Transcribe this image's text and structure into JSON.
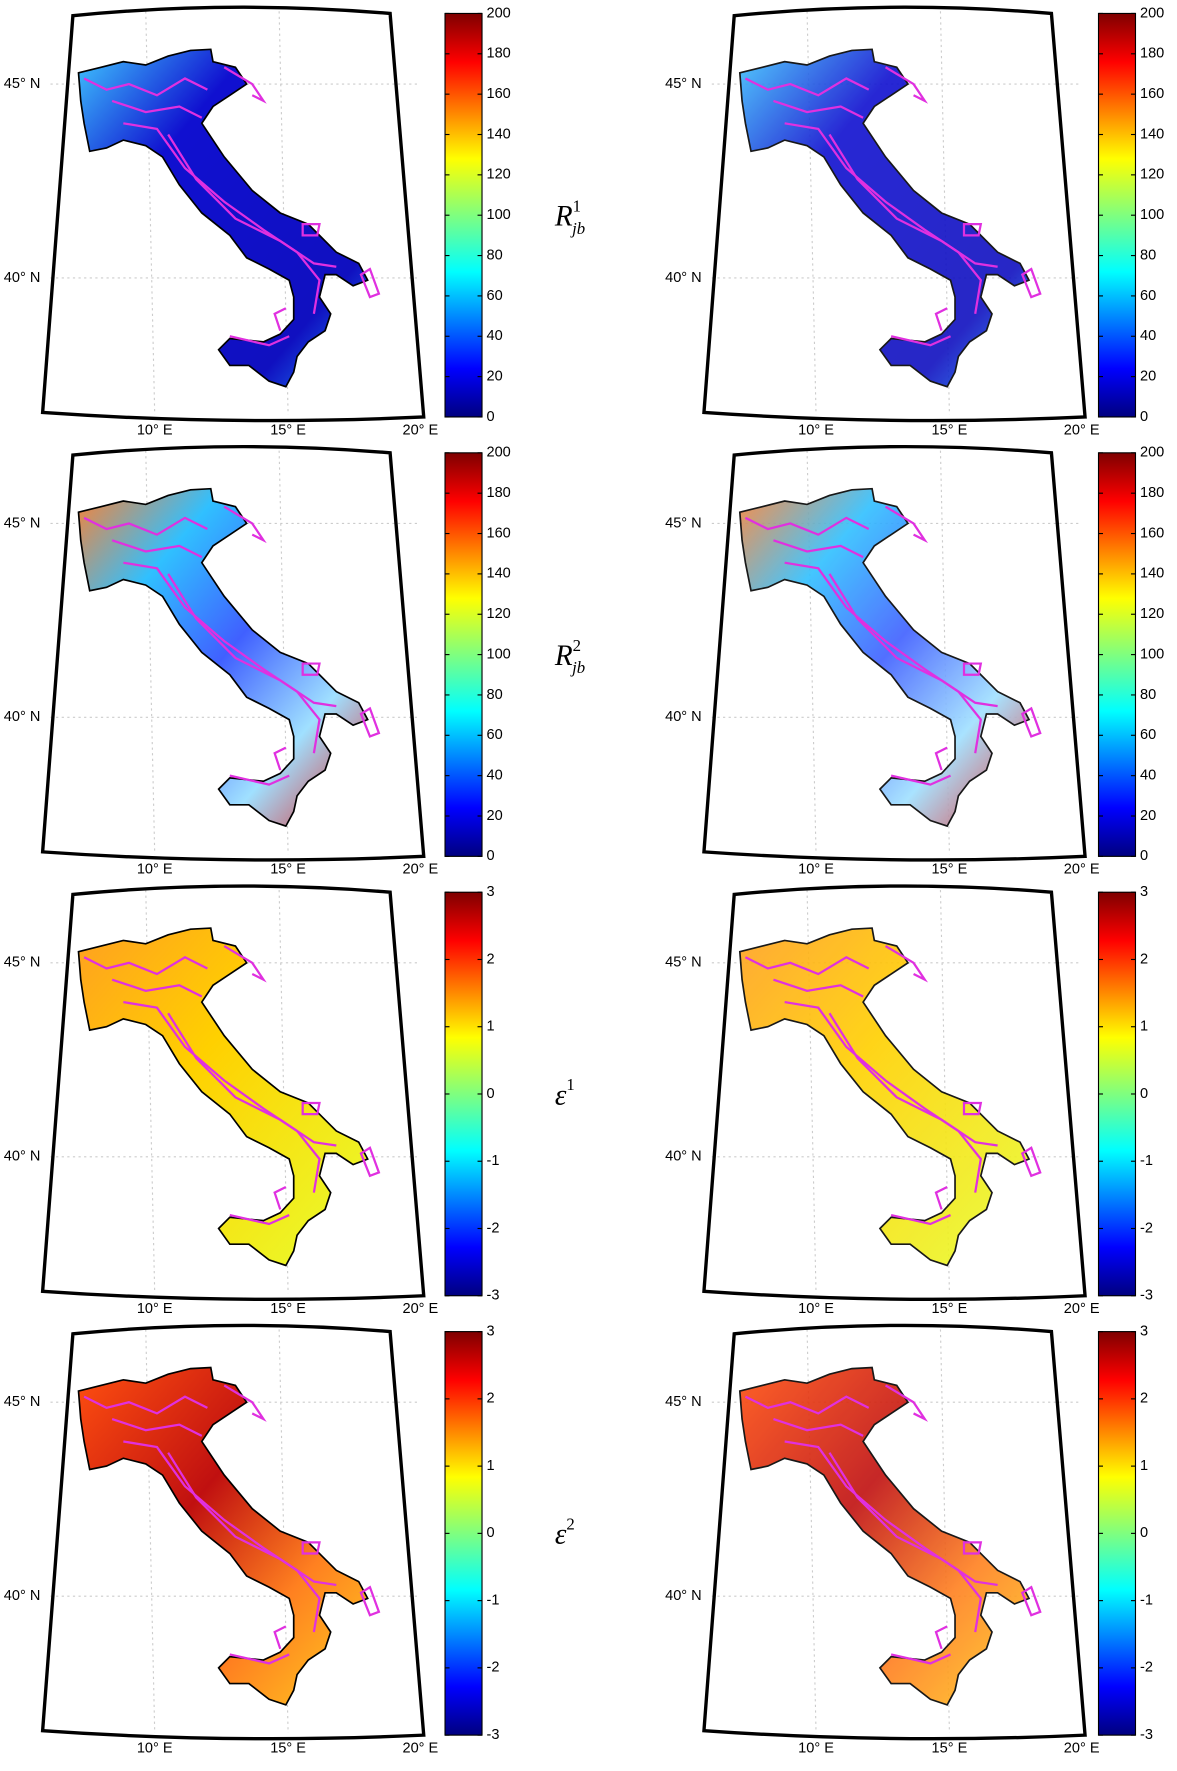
{
  "rows": [
    {
      "label": {
        "base": "R",
        "sup": "1",
        "sub": "jb"
      },
      "colorbar": {
        "lim": [
          0,
          200
        ],
        "ticks": [
          0,
          20,
          40,
          60,
          80,
          100,
          120,
          140,
          160,
          180,
          200
        ]
      }
    },
    {
      "label": {
        "base": "R",
        "sup": "2",
        "sub": "jb"
      },
      "colorbar": {
        "lim": [
          0,
          200
        ],
        "ticks": [
          0,
          20,
          40,
          60,
          80,
          100,
          120,
          140,
          160,
          180,
          200
        ]
      }
    },
    {
      "label": {
        "base": "ε",
        "sup": "1"
      },
      "colorbar": {
        "lim": [
          -3,
          3
        ],
        "ticks": [
          -3,
          -2,
          -1,
          0,
          1,
          2,
          3
        ]
      }
    },
    {
      "label": {
        "base": "ε",
        "sup": "2"
      },
      "colorbar": {
        "lim": [
          -3,
          3
        ],
        "ticks": [
          -3,
          -2,
          -1,
          0,
          1,
          2,
          3
        ]
      }
    }
  ],
  "map_labels": {
    "lat": [
      "45° N",
      "40° N"
    ],
    "lon": [
      "10° E",
      "15° E",
      "20° E"
    ]
  }
}
